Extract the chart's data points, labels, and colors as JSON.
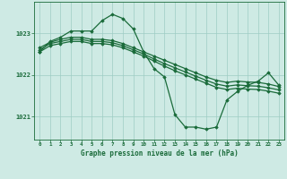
{
  "bg_color": "#ceeae4",
  "grid_color": "#9eccc4",
  "line_color": "#1a6b3a",
  "marker_color": "#1a6b3a",
  "xlabel": "Graphe pression niveau de la mer (hPa)",
  "ylim": [
    1020.45,
    1023.75
  ],
  "xlim": [
    -0.5,
    23.5
  ],
  "yticks": [
    1021,
    1022,
    1023
  ],
  "xticks": [
    0,
    1,
    2,
    3,
    4,
    5,
    6,
    7,
    8,
    9,
    10,
    11,
    12,
    13,
    14,
    15,
    16,
    17,
    18,
    19,
    20,
    21,
    22,
    23
  ],
  "series_main": [
    1022.55,
    1022.8,
    1022.9,
    1023.05,
    1023.05,
    1023.05,
    1023.3,
    1023.45,
    1023.35,
    1023.1,
    1022.55,
    1022.15,
    1021.95,
    1021.05,
    1020.75,
    1020.75,
    1020.7,
    1020.75,
    1021.4,
    1021.6,
    1021.75,
    1021.85,
    1022.05,
    1021.75
  ],
  "series_line1": [
    1022.65,
    1022.78,
    1022.85,
    1022.9,
    1022.9,
    1022.85,
    1022.85,
    1022.82,
    1022.75,
    1022.65,
    1022.55,
    1022.45,
    1022.35,
    1022.25,
    1022.15,
    1022.05,
    1021.95,
    1021.87,
    1021.82,
    1021.85,
    1021.83,
    1021.82,
    1021.78,
    1021.72
  ],
  "series_line2": [
    1022.6,
    1022.75,
    1022.8,
    1022.85,
    1022.85,
    1022.8,
    1022.8,
    1022.77,
    1022.7,
    1022.6,
    1022.5,
    1022.38,
    1022.27,
    1022.17,
    1022.07,
    1021.97,
    1021.87,
    1021.78,
    1021.73,
    1021.76,
    1021.74,
    1021.73,
    1021.69,
    1021.64
  ],
  "series_line3": [
    1022.55,
    1022.7,
    1022.75,
    1022.8,
    1022.8,
    1022.75,
    1022.75,
    1022.72,
    1022.65,
    1022.55,
    1022.45,
    1022.33,
    1022.21,
    1022.1,
    1022.0,
    1021.9,
    1021.8,
    1021.7,
    1021.65,
    1021.68,
    1021.66,
    1021.65,
    1021.61,
    1021.56
  ]
}
